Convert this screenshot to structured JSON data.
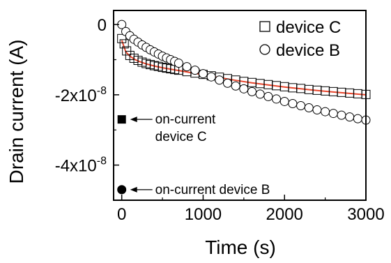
{
  "chart_data": {
    "type": "scatter",
    "title": "",
    "xlabel": "Time (s)",
    "ylabel": "Drain current (A)",
    "xlim": [
      -100,
      3000
    ],
    "ylim": [
      -5e-08,
      4e-09
    ],
    "grid": false,
    "legend_position": "top-right",
    "x_ticks": [
      0,
      1000,
      2000,
      3000
    ],
    "x_tick_labels": [
      "0",
      "1000",
      "2000",
      "3000"
    ],
    "y_ticks": [
      0,
      -2e-08,
      -4e-08
    ],
    "y_tick_labels": [
      {
        "mantissa": "0",
        "exponent": ""
      },
      {
        "mantissa": "-2x10",
        "exponent": "-8"
      },
      {
        "mantissa": "-4x10",
        "exponent": "-8"
      }
    ],
    "series": [
      {
        "name": "device C",
        "marker": "open-square",
        "x": [
          0,
          30,
          60,
          100,
          150,
          200,
          250,
          300,
          350,
          400,
          450,
          500,
          550,
          600,
          650,
          700,
          800,
          900,
          1000,
          1100,
          1200,
          1300,
          1400,
          1500,
          1600,
          1700,
          1800,
          1900,
          2000,
          2100,
          2200,
          2300,
          2400,
          2500,
          2600,
          2700,
          2800,
          2900,
          3000
        ],
        "y": [
          -4e-09,
          -5.5e-09,
          -7.5e-09,
          -8.8e-09,
          -9.6e-09,
          -1.02e-08,
          -1.07e-08,
          -1.11e-08,
          -1.14e-08,
          -1.17e-08,
          -1.19e-08,
          -1.22e-08,
          -1.24e-08,
          -1.26e-08,
          -1.28e-08,
          -1.3e-08,
          -1.34e-08,
          -1.38e-08,
          -1.42e-08,
          -1.46e-08,
          -1.5e-08,
          -1.54e-08,
          -1.58e-08,
          -1.62e-08,
          -1.65e-08,
          -1.68e-08,
          -1.71e-08,
          -1.74e-08,
          -1.77e-08,
          -1.8e-08,
          -1.82e-08,
          -1.85e-08,
          -1.87e-08,
          -1.89e-08,
          -1.91e-08,
          -1.93e-08,
          -1.95e-08,
          -1.97e-08,
          -1.99e-08
        ]
      },
      {
        "name": "device B",
        "marker": "open-circle",
        "x": [
          0,
          50,
          100,
          150,
          200,
          250,
          300,
          350,
          400,
          450,
          500,
          550,
          600,
          650,
          700,
          800,
          900,
          1000,
          1100,
          1200,
          1300,
          1400,
          1500,
          1600,
          1700,
          1800,
          1900,
          2000,
          2100,
          2200,
          2300,
          2400,
          2500,
          2600,
          2700,
          2800,
          2900,
          3000
        ],
        "y": [
          -0.0,
          -2e-09,
          -3.2e-09,
          -4.2e-09,
          -5e-09,
          -5.8e-09,
          -6.5e-09,
          -7.2e-09,
          -7.8e-09,
          -8.4e-09,
          -9e-09,
          -9.5e-09,
          -1e-08,
          -1.05e-08,
          -1.1e-08,
          -1.2e-08,
          -1.3e-08,
          -1.4e-08,
          -1.49e-08,
          -1.58e-08,
          -1.67e-08,
          -1.75e-08,
          -1.83e-08,
          -1.91e-08,
          -1.98e-08,
          -2.05e-08,
          -2.12e-08,
          -2.19e-08,
          -2.25e-08,
          -2.31e-08,
          -2.37e-08,
          -2.43e-08,
          -2.48e-08,
          -2.53e-08,
          -2.58e-08,
          -2.63e-08,
          -2.68e-08,
          -2.72e-08
        ]
      }
    ],
    "fits": [
      {
        "series": "device C",
        "color": "#e8452c",
        "x": [
          0,
          50,
          100,
          150,
          200,
          300,
          400,
          500,
          600,
          800,
          1000,
          1200,
          1400,
          1600,
          1800,
          2000,
          2200,
          2400,
          2600,
          2800,
          3000
        ],
        "y": [
          -4.5e-09,
          -7.8e-09,
          -9e-09,
          -9.8e-09,
          -1.04e-08,
          -1.12e-08,
          -1.18e-08,
          -1.23e-08,
          -1.27e-08,
          -1.35e-08,
          -1.43e-08,
          -1.51e-08,
          -1.59e-08,
          -1.66e-08,
          -1.72e-08,
          -1.78e-08,
          -1.83e-08,
          -1.88e-08,
          -1.92e-08,
          -1.96e-08,
          -2e-08
        ]
      },
      {
        "series": "device B",
        "color": "#e8452c",
        "x": [
          0,
          50,
          100,
          200,
          300,
          400,
          500,
          600,
          800,
          1000,
          1200,
          1400,
          1600,
          1800,
          2000,
          2200,
          2400,
          2600,
          2800,
          3000
        ],
        "y": [
          0.0,
          -2e-09,
          -3.3e-09,
          -5.1e-09,
          -6.6e-09,
          -7.9e-09,
          -9.1e-09,
          -1.01e-08,
          -1.21e-08,
          -1.41e-08,
          -1.59e-08,
          -1.76e-08,
          -1.92e-08,
          -2.06e-08,
          -2.2e-08,
          -2.32e-08,
          -2.44e-08,
          -2.54e-08,
          -2.64e-08,
          -2.73e-08
        ]
      }
    ],
    "markers": [
      {
        "label": "on-current device C",
        "lines": [
          "on-current",
          "device C"
        ],
        "x": 0,
        "y": -2.7e-08,
        "marker": "filled-square"
      },
      {
        "label": "on-current device B",
        "lines": [
          "on-current device B"
        ],
        "x": 0,
        "y": -4.7e-08,
        "marker": "filled-circle"
      }
    ]
  }
}
